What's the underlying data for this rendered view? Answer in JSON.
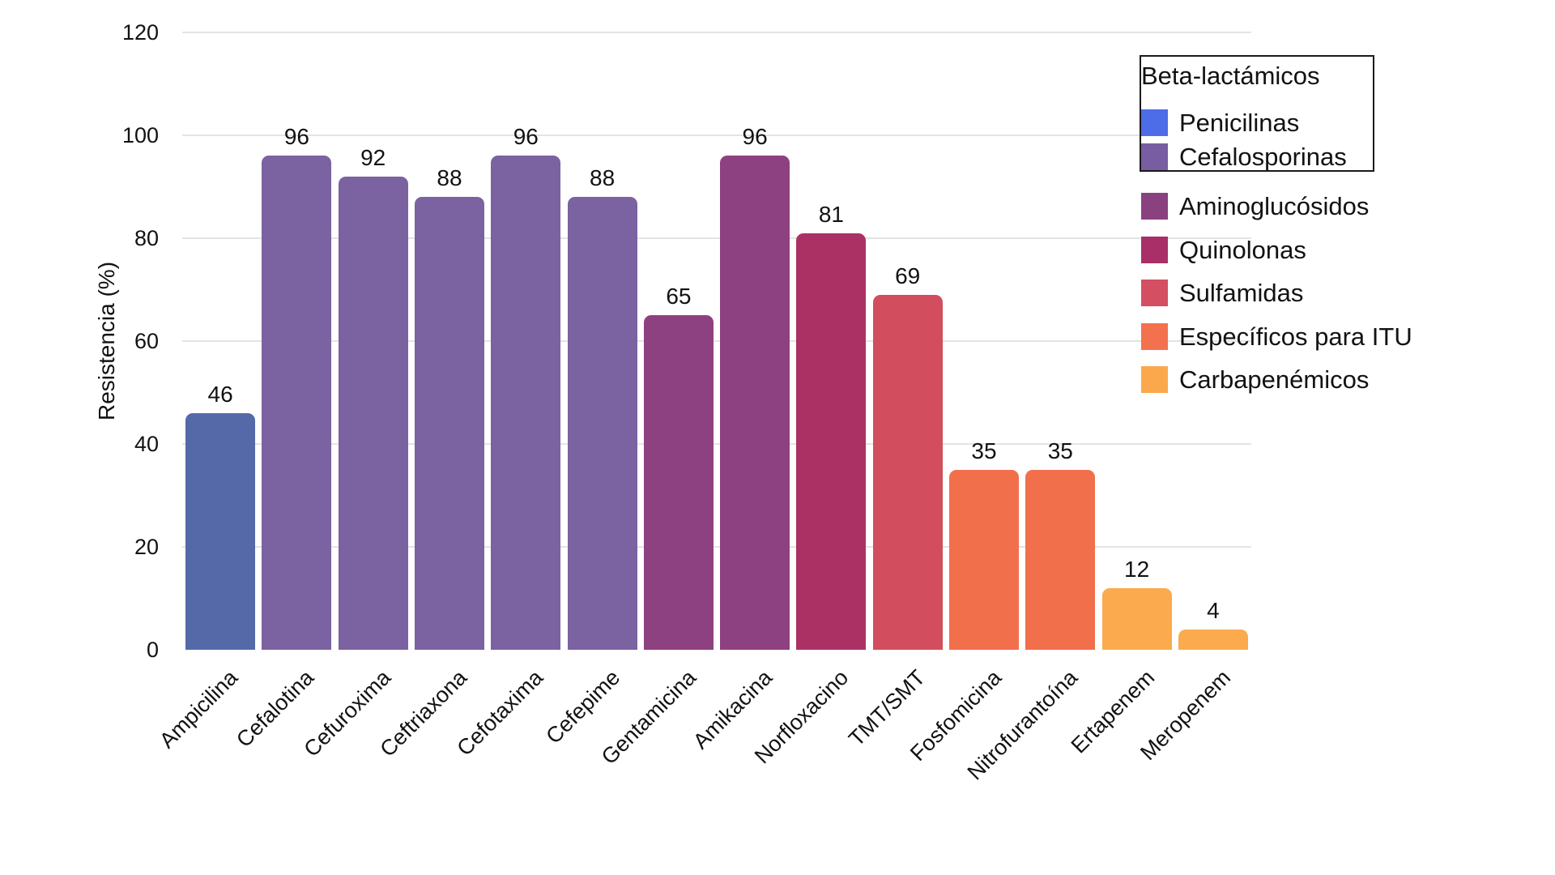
{
  "chart_data": {
    "type": "bar",
    "title": "",
    "ylabel": "Resistencia (%)",
    "xlabel": "",
    "ylim": [
      0,
      120
    ],
    "yticks": [
      0,
      20,
      40,
      60,
      80,
      100,
      120
    ],
    "grid": true,
    "legend_position": "upper-right",
    "categories": [
      "Ampicilina",
      "Cefalotina",
      "Cefuroxima",
      "Ceftriaxona",
      "Cefotaxima",
      "Cefepime",
      "Gentamicina",
      "Amikacina",
      "Norfloxacino",
      "TMT/SMT",
      "Fosfomicina",
      "Nitrofurantoína",
      "Ertapenem",
      "Meropenem"
    ],
    "values": [
      46,
      96,
      92,
      88,
      96,
      88,
      65,
      96,
      81,
      69,
      35,
      35,
      12,
      4
    ],
    "bar_groups": [
      "Penicilinas",
      "Cefalosporinas",
      "Cefalosporinas",
      "Cefalosporinas",
      "Cefalosporinas",
      "Cefalosporinas",
      "Aminoglucósidos",
      "Aminoglucósidos",
      "Quinolonas",
      "Sulfamidas",
      "Específicos para ITU",
      "Específicos para ITU",
      "Carbapenémicos",
      "Carbapenémicos"
    ],
    "bar_colors": [
      "#5569A9",
      "#7B62A1",
      "#7B62A1",
      "#7B62A1",
      "#7B62A1",
      "#7B62A1",
      "#8E4181",
      "#8E4181",
      "#AB3164",
      "#D24E5E",
      "#F26F4C",
      "#F26F4C",
      "#FBAA4E",
      "#FBAA4E"
    ],
    "legend": {
      "boxed_group_title": "Beta-lactámicos",
      "boxed_items": [
        {
          "label": "Penicilinas",
          "color": "#4D6CE8"
        },
        {
          "label": "Cefalosporinas",
          "color": "#785DA3"
        }
      ],
      "items": [
        {
          "label": "Aminoglucósidos",
          "color": "#8A4180"
        },
        {
          "label": "Quinolonas",
          "color": "#A92F68"
        },
        {
          "label": "Sulfamidas",
          "color": "#D44F62"
        },
        {
          "label": "Específicos para ITU",
          "color": "#F3714E"
        },
        {
          "label": "Carbapenémicos",
          "color": "#FBA84D"
        }
      ]
    }
  },
  "layout_text": {
    "ylabel": "Resistencia (%)",
    "legend_title": "Beta-lactámicos"
  }
}
